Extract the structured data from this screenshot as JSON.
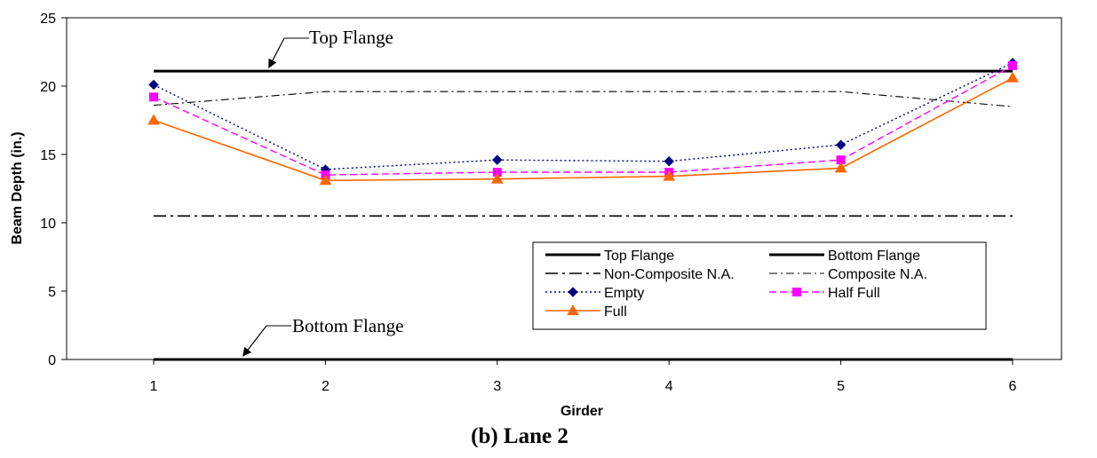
{
  "chart_data": {
    "type": "line",
    "caption": "(b) Lane 2",
    "xlabel": "Girder",
    "ylabel": "Beam Depth (in.)",
    "x": [
      1,
      2,
      3,
      4,
      5,
      6
    ],
    "x_tick_labels": [
      "1",
      "2",
      "3",
      "4",
      "5",
      "6"
    ],
    "ylim": [
      0,
      25
    ],
    "y_ticks": [
      0,
      5,
      10,
      15,
      20,
      25
    ],
    "y_tick_labels": [
      "0",
      "5",
      "10",
      "15",
      "20",
      "25"
    ],
    "grid": false,
    "legend_position": "bottom-right",
    "series": [
      {
        "name": "Top Flange",
        "values": [
          21.1,
          21.1,
          21.1,
          21.1,
          21.1,
          21.1
        ],
        "color": "#000000",
        "style": "solid-thick",
        "marker": "none"
      },
      {
        "name": "Bottom Flange",
        "values": [
          0,
          0,
          0,
          0,
          0,
          0
        ],
        "color": "#000000",
        "style": "solid-thick",
        "marker": "none"
      },
      {
        "name": "Non-Composite N.A.",
        "values": [
          10.5,
          10.5,
          10.5,
          10.5,
          10.5,
          10.5
        ],
        "color": "#000000",
        "style": "dash-dot",
        "marker": "none"
      },
      {
        "name": "Composite N.A.",
        "values": [
          18.6,
          19.6,
          19.6,
          19.6,
          19.6,
          18.5
        ],
        "color": "#000000",
        "style": "dash-dot-thin",
        "marker": "none"
      },
      {
        "name": "Empty",
        "values": [
          20.1,
          13.9,
          14.6,
          14.5,
          15.7,
          21.7
        ],
        "color": "#000080",
        "style": "dotted",
        "marker": "diamond"
      },
      {
        "name": "Half Full",
        "values": [
          19.2,
          13.5,
          13.7,
          13.7,
          14.6,
          21.5
        ],
        "color": "#ff00ff",
        "style": "dashed",
        "marker": "square"
      },
      {
        "name": "Full",
        "values": [
          17.5,
          13.1,
          13.2,
          13.4,
          14.0,
          20.6
        ],
        "color": "#ff6600",
        "style": "solid",
        "marker": "triangle"
      }
    ],
    "annotations": [
      {
        "text": "Top Flange",
        "points_to": {
          "x": 1.65,
          "y": 21.1
        }
      },
      {
        "text": "Bottom Flange",
        "points_to": {
          "x": 1.5,
          "y": 0
        }
      }
    ]
  }
}
